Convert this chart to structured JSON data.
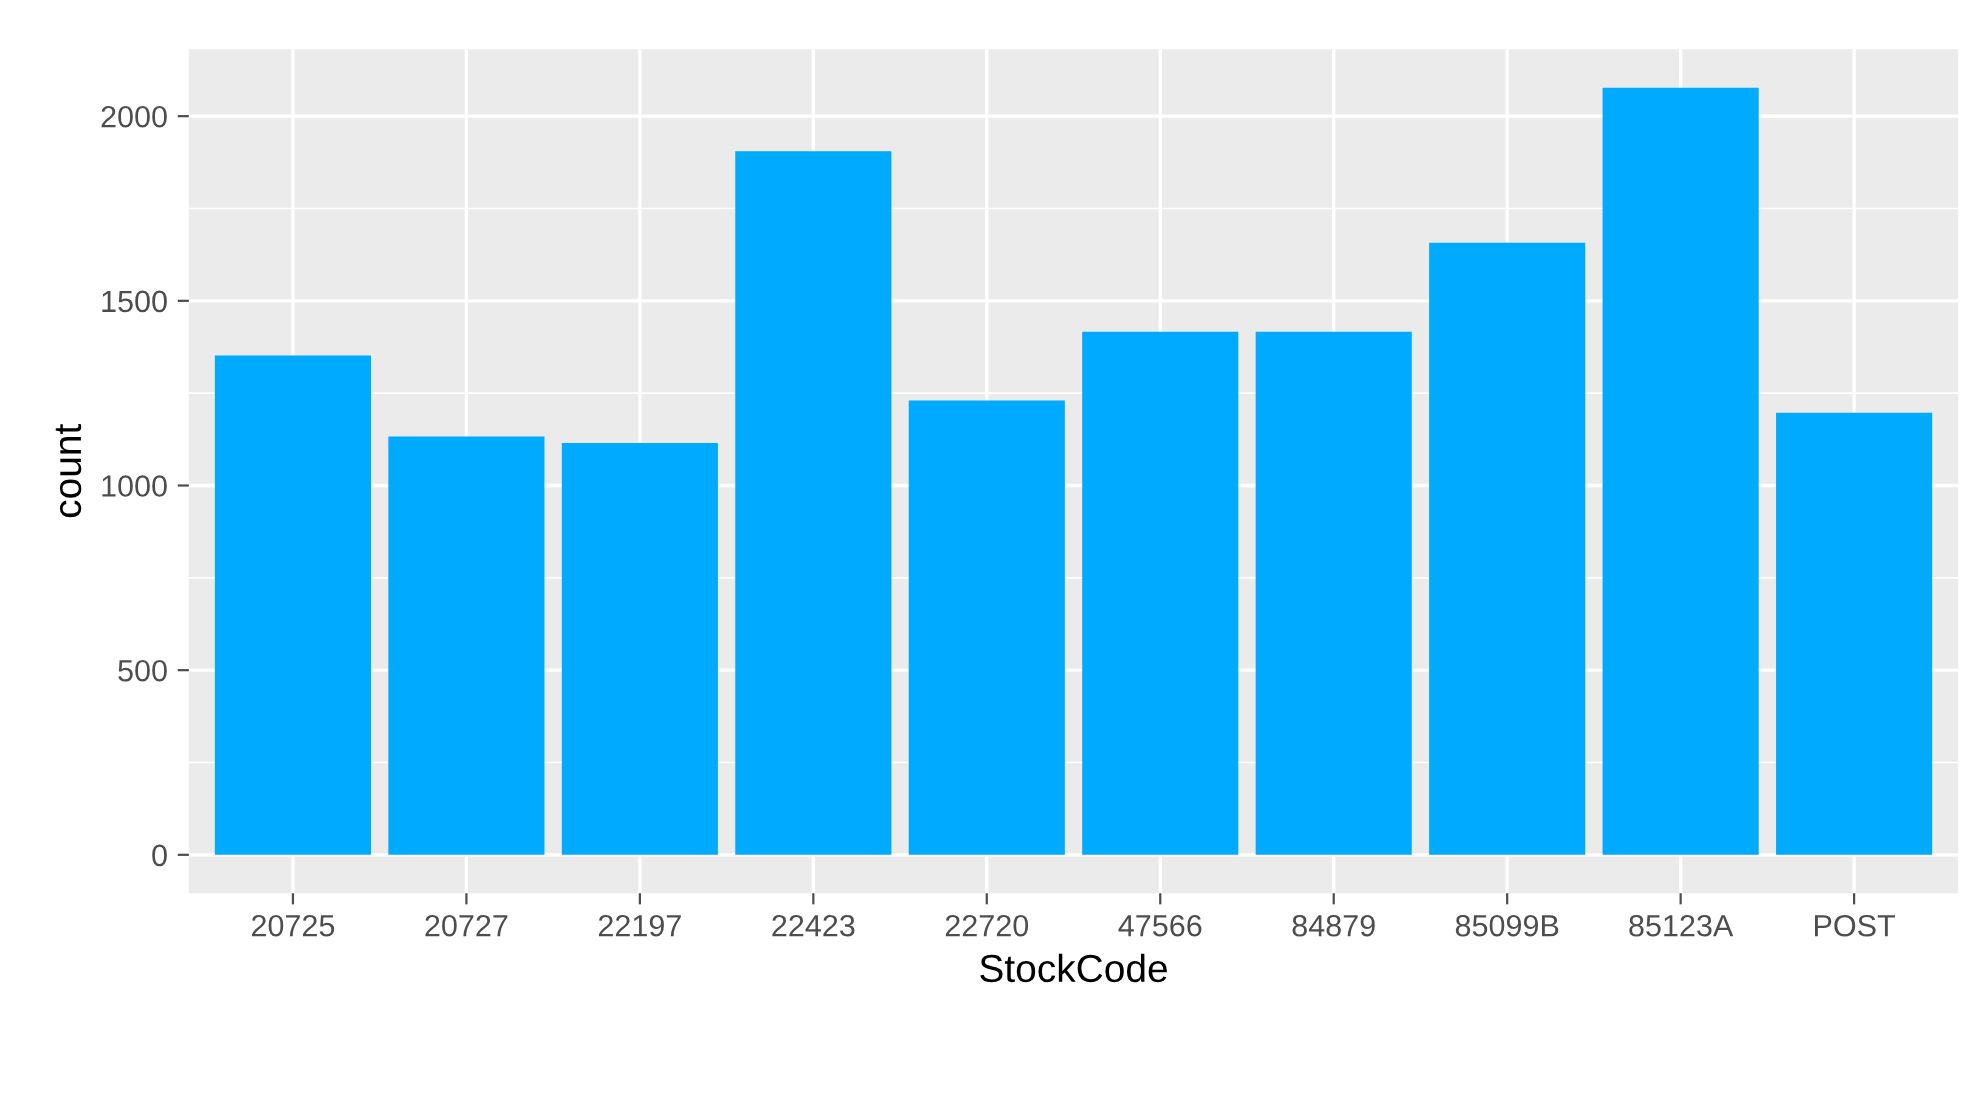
{
  "chart_data": {
    "type": "bar",
    "xlabel": "StockCode",
    "ylabel": "count",
    "categories": [
      "20725",
      "20727",
      "22197",
      "22423",
      "22720",
      "47566",
      "84879",
      "85099B",
      "85123A",
      "POST"
    ],
    "values": [
      1352,
      1133,
      1115,
      1905,
      1230,
      1416,
      1416,
      1657,
      2077,
      1197
    ],
    "color": "#00aaff",
    "ylim": [
      -104,
      2181
    ],
    "yticks": [
      0,
      500,
      1000,
      1500,
      2000
    ],
    "grid": true,
    "legend": false
  }
}
